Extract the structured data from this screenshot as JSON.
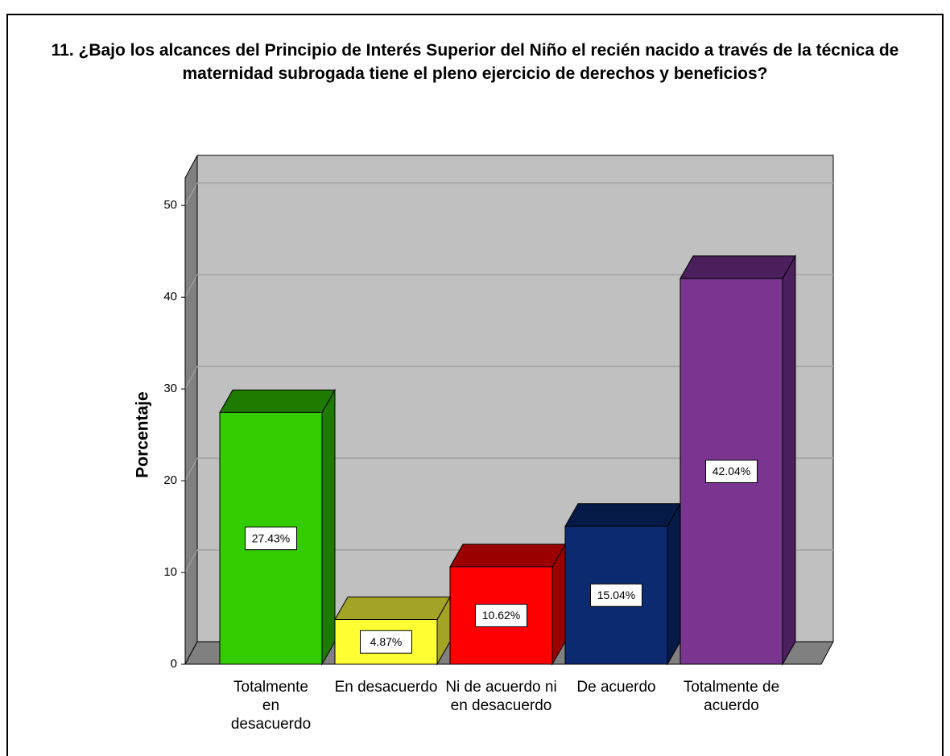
{
  "chart_data": {
    "type": "bar3d",
    "title": "11. ¿Bajo los alcances del Principio de Interés Superior del Niño el recién nacido a través de la técnica de maternidad subrogada tiene el pleno ejercicio de derechos y beneficios?",
    "ylabel": "Porcentaje",
    "categories": [
      "Totalmente en desacuerdo",
      "En desacuerdo",
      "Ni de acuerdo ni en desacuerdo",
      "De acuerdo",
      "Totalmente de acuerdo"
    ],
    "values": [
      27.43,
      4.87,
      10.62,
      15.04,
      42.04
    ],
    "value_labels": [
      "27.43%",
      "4.87%",
      "10.62%",
      "15.04%",
      "42.04%"
    ],
    "colors": [
      "#33cc00",
      "#ffff33",
      "#ff0000",
      "#0c2a70",
      "#7a3590"
    ],
    "side_colors": [
      "#1f7a00",
      "#a3a325",
      "#9a0000",
      "#061a48",
      "#4b1f5c"
    ],
    "ylim": [
      0,
      53
    ],
    "yticks": [
      0,
      10,
      20,
      30,
      40,
      50
    ],
    "grid": true
  }
}
